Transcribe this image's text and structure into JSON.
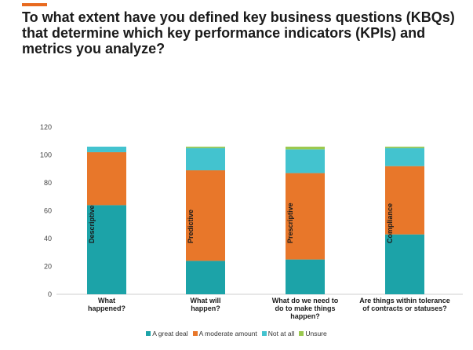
{
  "title": "To what extent have you defined key business questions (KBQs) that determine which key performance indicators (KPIs) and metrics you analyze?",
  "colors": {
    "accent": "#e86a1f",
    "a_great_deal": "#1ca3a8",
    "a_moderate_amount": "#e8772a",
    "not_at_all": "#43c3cf",
    "unsure": "#9bc94f"
  },
  "chart_data": {
    "type": "bar",
    "stacked": true,
    "categories": [
      "What happened?",
      "What will happen?",
      "What do we need to do to make things happen?",
      "Are things within tolerance of contracts or statuses?"
    ],
    "category_label_lines": [
      [
        "What",
        "happened?"
      ],
      [
        "What will",
        "happen?"
      ],
      [
        "What do we need to",
        "do to make things",
        "happen?"
      ],
      [
        "Are things within tolerance",
        "of contracts or statuses?"
      ]
    ],
    "bar_labels": [
      "Descriptive",
      "Predictive",
      "Prescriptive",
      "Compliance"
    ],
    "series": [
      {
        "name": "A great deal",
        "color": "#1ca3a8",
        "values": [
          64,
          24,
          25,
          43
        ]
      },
      {
        "name": "A moderate amount",
        "color": "#e8772a",
        "values": [
          38,
          65,
          62,
          49
        ]
      },
      {
        "name": "Not at all",
        "color": "#43c3cf",
        "values": [
          4,
          16,
          17,
          13
        ]
      },
      {
        "name": "Unsure",
        "color": "#9bc94f",
        "values": [
          0,
          1,
          2,
          1
        ]
      }
    ],
    "ylim": [
      0,
      120
    ],
    "yticks": [
      0,
      20,
      40,
      60,
      80,
      100,
      120
    ],
    "grid": false,
    "legend_position": "bottom"
  }
}
